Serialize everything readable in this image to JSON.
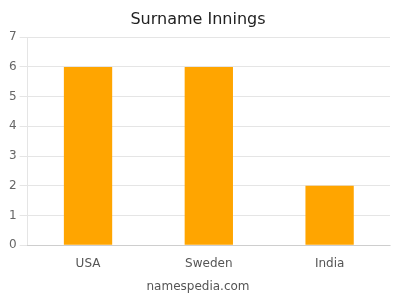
{
  "chart_data": {
    "type": "bar",
    "title": "Surname Innings",
    "categories": [
      "USA",
      "Sweden",
      "India"
    ],
    "values": [
      6,
      6,
      2
    ],
    "color": "#FFA500",
    "ylim": [
      0,
      7
    ],
    "yticks": [
      0,
      1,
      2,
      3,
      4,
      5,
      6,
      7
    ],
    "grid": true,
    "annotations": [
      "namespedia.com"
    ]
  }
}
